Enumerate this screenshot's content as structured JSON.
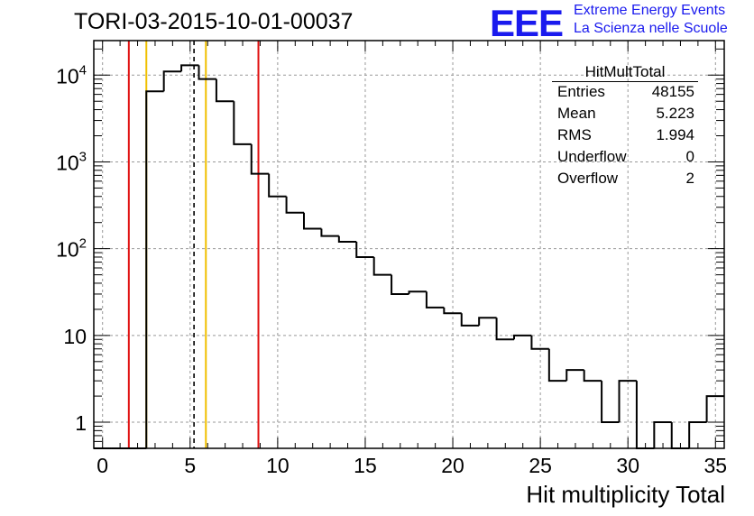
{
  "header": {
    "run_title": "TORI-03-2015-10-01-00037",
    "logo_mark": "EEE",
    "logo_line1": "Extreme Energy Events",
    "logo_line2": "La Scienza nelle Scuole"
  },
  "stats_box": {
    "title": "HitMultTotal",
    "rows": [
      {
        "name": "Entries",
        "value": "48155"
      },
      {
        "name": "Mean",
        "value": "5.223"
      },
      {
        "name": "RMS",
        "value": "1.994"
      },
      {
        "name": "Underflow",
        "value": "0"
      },
      {
        "name": "Overflow",
        "value": "2"
      }
    ]
  },
  "colors": {
    "histogram": "#000000",
    "red_marker": "#e01010",
    "yellow_marker": "#f0c000",
    "mean_marker": "#000000",
    "grid": "#999999",
    "logo": "#1a1aee"
  },
  "chart_data": {
    "type": "histogram",
    "title": "TORI-03-2015-10-01-00037",
    "xlabel": "Hit multiplicity Total",
    "ylabel": "",
    "y_scale": "log",
    "xlim": [
      -0.5,
      35.5
    ],
    "ylim": [
      0.5,
      25000
    ],
    "bin_width": 1,
    "bin_centers": [
      0,
      1,
      2,
      3,
      4,
      5,
      6,
      7,
      8,
      9,
      10,
      11,
      12,
      13,
      14,
      15,
      16,
      17,
      18,
      19,
      20,
      21,
      22,
      23,
      24,
      25,
      26,
      27,
      28,
      29,
      30,
      31,
      32,
      33,
      34,
      35
    ],
    "counts": [
      0,
      0,
      0,
      6500,
      11000,
      13000,
      9000,
      5000,
      1600,
      730,
      400,
      260,
      170,
      140,
      120,
      80,
      50,
      30,
      32,
      21,
      18,
      13,
      16,
      9,
      10,
      7,
      3,
      4,
      3,
      1,
      3,
      0,
      1,
      0,
      1,
      2
    ],
    "x_ticks": [
      0,
      5,
      10,
      15,
      20,
      25,
      30,
      35
    ],
    "x_tick_labels": [
      "0",
      "5",
      "10",
      "15",
      "20",
      "25",
      "30",
      "35"
    ],
    "y_ticks": [
      1,
      10,
      100,
      1000,
      10000
    ],
    "y_tick_labels": [
      {
        "base": "1",
        "exp": ""
      },
      {
        "base": "10",
        "exp": ""
      },
      {
        "base": "10",
        "exp": "2"
      },
      {
        "base": "10",
        "exp": "3"
      },
      {
        "base": "10",
        "exp": "4"
      }
    ],
    "grid": true,
    "vertical_markers": [
      {
        "x": 1.5,
        "color": "red",
        "style": "solid"
      },
      {
        "x": 2.5,
        "color": "yellow",
        "style": "solid"
      },
      {
        "x": 5.223,
        "color": "black",
        "style": "dashed"
      },
      {
        "x": 5.9,
        "color": "yellow",
        "style": "solid"
      },
      {
        "x": 8.9,
        "color": "red",
        "style": "solid"
      }
    ]
  }
}
